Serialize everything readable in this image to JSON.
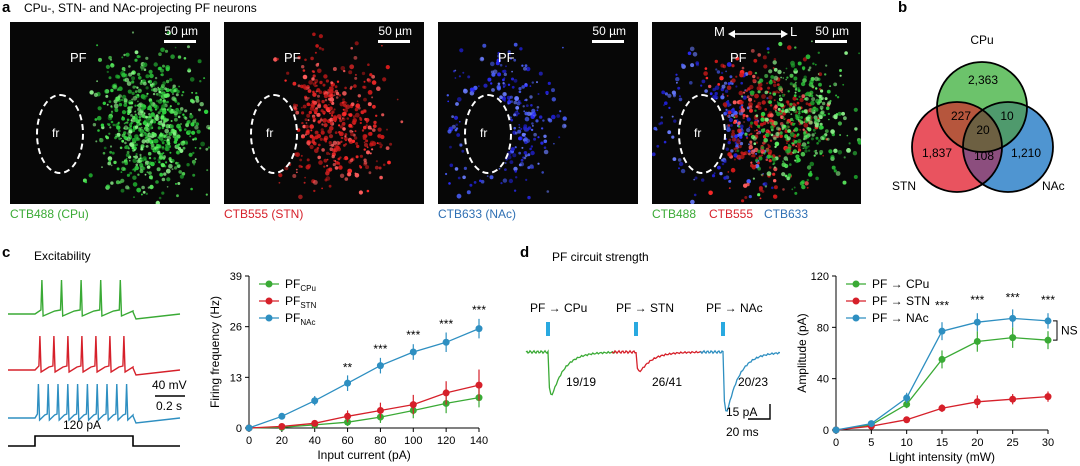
{
  "panel_a": {
    "label": "a",
    "title": "CPu-, STN- and NAc-projecting PF neurons",
    "pf": "PF",
    "fr": "fr",
    "scale": "50 µm",
    "ml_m": "M",
    "ml_l": "L",
    "captions": [
      "CTB488 (CPu)",
      "CTB555 (STN)",
      "CTB633 (NAc)"
    ],
    "merge_captions": [
      "CTB488",
      "CTB555",
      "CTB633"
    ],
    "colors": {
      "green": "#3aaa35",
      "red": "#d6202a",
      "blue": "#2e6fb3"
    }
  },
  "panel_b": {
    "label": "b",
    "sets": {
      "cpu": "CPu",
      "stn": "STN",
      "nac": "NAc"
    },
    "counts": {
      "cpu_only": "2,363",
      "stn_only": "1,837",
      "nac_only": "1,210",
      "cpu_stn": "227",
      "cpu_nac": "10",
      "stn_nac": "108",
      "all": "20"
    },
    "colors": {
      "cpu": "#6cc36b",
      "stn": "#e9535f",
      "nac": "#4f95d1",
      "cpu_stn": "#b6563d",
      "cpu_nac": "#4f9a6d",
      "stn_nac": "#8c4e7e",
      "all": "#6d6042"
    }
  },
  "panel_c": {
    "label": "c",
    "title": "Excitability",
    "scale_mv": "40 mV",
    "scale_s": "0.2 s",
    "current": "120 pA",
    "trace_colors": [
      "#3aaa35",
      "#d6202a",
      "#2e8fc1"
    ]
  },
  "panel_d": {
    "label": "d",
    "title": "PF circuit strength",
    "traces": [
      {
        "label": "PF → CPu",
        "ratio": "19/19",
        "color": "#3aaa35"
      },
      {
        "label": "PF → STN",
        "ratio": "26/41",
        "color": "#d6202a"
      },
      {
        "label": "PF → NAc",
        "ratio": "20/23",
        "color": "#2e8fc1"
      }
    ],
    "scale_pa": "15 pA",
    "scale_ms": "20 ms",
    "light_color": "#29a9e0"
  },
  "chart_data": [
    {
      "type": "line",
      "panel": "c",
      "xlabel": "Input current (pA)",
      "ylabel": "Firing frequency (Hz)",
      "xlim": [
        0,
        140
      ],
      "ylim": [
        0,
        39
      ],
      "xticks": [
        0,
        20,
        40,
        60,
        80,
        100,
        120,
        140
      ],
      "yticks": [
        0,
        13,
        26,
        39
      ],
      "legend_placement": "top-left",
      "series": [
        {
          "name": "PF",
          "sub": "CPu",
          "color": "#3aaa35",
          "x": [
            0,
            20,
            40,
            60,
            80,
            100,
            120,
            140
          ],
          "y": [
            0,
            0.2,
            0.8,
            1.5,
            2.8,
            4.5,
            6.3,
            7.8
          ],
          "err": [
            0,
            0.2,
            0.5,
            1,
            1.5,
            2,
            2.5,
            2.5
          ]
        },
        {
          "name": "PF",
          "sub": "STN",
          "color": "#d6202a",
          "x": [
            0,
            20,
            40,
            60,
            80,
            100,
            120,
            140
          ],
          "y": [
            0,
            0.4,
            1.2,
            3.0,
            4.5,
            6.0,
            9.0,
            11.0
          ],
          "err": [
            0,
            0.3,
            0.8,
            1.5,
            2,
            2.5,
            3,
            4
          ]
        },
        {
          "name": "PF",
          "sub": "NAc",
          "color": "#2e8fc1",
          "x": [
            0,
            20,
            40,
            60,
            80,
            100,
            120,
            140
          ],
          "y": [
            0,
            3.0,
            7.0,
            11.5,
            16.0,
            19.5,
            22.0,
            25.5
          ],
          "err": [
            0,
            0.8,
            1.2,
            2,
            2,
            2,
            2.5,
            2.5
          ]
        }
      ],
      "annotations": [
        {
          "x": 60,
          "y": 14.5,
          "text": "**"
        },
        {
          "x": 80,
          "y": 19.2,
          "text": "***"
        },
        {
          "x": 100,
          "y": 22.8,
          "text": "***"
        },
        {
          "x": 120,
          "y": 25.7,
          "text": "***"
        },
        {
          "x": 140,
          "y": 29.3,
          "text": "***"
        }
      ]
    },
    {
      "type": "line",
      "panel": "d",
      "xlabel": "Light intensity (mW)",
      "ylabel": "Amplitude (pA)",
      "xlim": [
        0,
        30
      ],
      "ylim": [
        0,
        120
      ],
      "xticks": [
        0,
        5,
        10,
        15,
        20,
        25,
        30
      ],
      "yticks": [
        0,
        40,
        80,
        120
      ],
      "legend_placement": "top-left",
      "series": [
        {
          "name": "PF → CPu",
          "color": "#3aaa35",
          "x": [
            0,
            5,
            10,
            15,
            20,
            25,
            30
          ],
          "y": [
            0,
            4,
            20,
            55,
            69,
            72,
            70
          ],
          "err": [
            0,
            1,
            3,
            7,
            8,
            8,
            7
          ]
        },
        {
          "name": "PF → STN",
          "color": "#d6202a",
          "x": [
            0,
            5,
            10,
            15,
            20,
            25,
            30
          ],
          "y": [
            0,
            3,
            8,
            17,
            22,
            24,
            26
          ],
          "err": [
            0,
            1,
            2,
            3,
            5,
            4,
            4
          ]
        },
        {
          "name": "PF → NAc",
          "color": "#2e8fc1",
          "x": [
            0,
            5,
            10,
            15,
            20,
            25,
            30
          ],
          "y": [
            0,
            5,
            25,
            77,
            84,
            87,
            85
          ],
          "err": [
            0,
            1,
            4,
            7,
            7,
            7,
            6
          ]
        }
      ],
      "annotations": [
        {
          "x": 15,
          "y": 94,
          "text": "***"
        },
        {
          "x": 20,
          "y": 98,
          "text": "***"
        },
        {
          "x": 25,
          "y": 100,
          "text": "***"
        },
        {
          "x": 30,
          "y": 98,
          "text": "***"
        }
      ],
      "bracket_label": "NS"
    }
  ]
}
